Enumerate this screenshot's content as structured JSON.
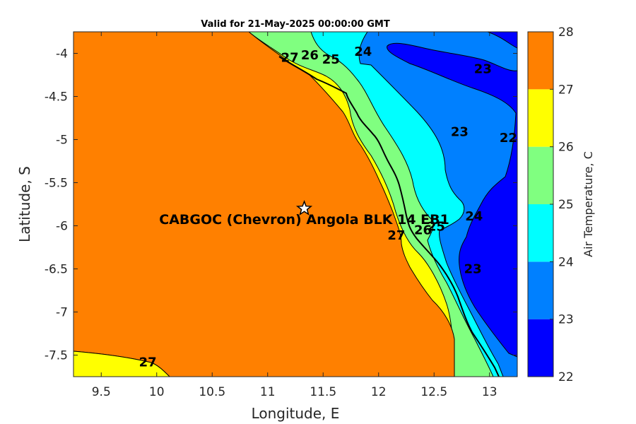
{
  "title": "Valid for 21-May-2025 00:00:00 GMT",
  "chart_data": {
    "type": "contour-map",
    "title": "Valid for 21-May-2025 00:00:00 GMT",
    "xlabel": "Longitude, E",
    "ylabel": "Latitude, S",
    "xlim": [
      9.25,
      13.25
    ],
    "ylim": [
      -7.75,
      -3.75
    ],
    "xticks": [
      9.5,
      10,
      10.5,
      11,
      11.5,
      12,
      12.5,
      13
    ],
    "xtick_labels": [
      "9.5",
      "10",
      "10.5",
      "11",
      "11.5",
      "12",
      "12.5",
      "13"
    ],
    "yticks": [
      -4,
      -4.5,
      -5,
      -5.5,
      -6,
      -6.5,
      -7,
      -7.5
    ],
    "ytick_labels": [
      "-4",
      "-4.5",
      "-5",
      "-5.5",
      "-6",
      "-6.5",
      "-7",
      "-7.5"
    ],
    "colorbar": {
      "label": "Air Temperature, C",
      "levels": [
        22,
        23,
        24,
        25,
        26,
        27,
        28
      ],
      "tick_labels": [
        "22",
        "23",
        "24",
        "25",
        "26",
        "27",
        "28"
      ],
      "colors": [
        "#0000ff",
        "#0080ff",
        "#00ffff",
        "#80ff80",
        "#ffff00",
        "#ff8000",
        "#ff0000"
      ]
    },
    "contour_labels": [
      {
        "text": "27",
        "lon": 11.2,
        "lat": -4.05
      },
      {
        "text": "26",
        "lon": 11.38,
        "lat": -4.02
      },
      {
        "text": "25",
        "lon": 11.57,
        "lat": -4.07
      },
      {
        "text": "24",
        "lon": 11.86,
        "lat": -3.98
      },
      {
        "text": "23",
        "lon": 12.94,
        "lat": -4.18
      },
      {
        "text": "23",
        "lon": 12.73,
        "lat": -4.91
      },
      {
        "text": "22",
        "lon": 13.17,
        "lat": -4.98
      },
      {
        "text": "27",
        "lon": 12.16,
        "lat": -6.11
      },
      {
        "text": "26",
        "lon": 12.4,
        "lat": -6.05
      },
      {
        "text": "25",
        "lon": 12.52,
        "lat": -6.01
      },
      {
        "text": "24",
        "lon": 12.86,
        "lat": -5.89
      },
      {
        "text": "23",
        "lon": 12.85,
        "lat": -6.5
      },
      {
        "text": "27",
        "lon": 9.92,
        "lat": -7.58
      }
    ],
    "station": {
      "name": "CABGOC (Chevron)  Angola BLK 14  EB1",
      "lon": 11.33,
      "lat": -5.8
    }
  }
}
